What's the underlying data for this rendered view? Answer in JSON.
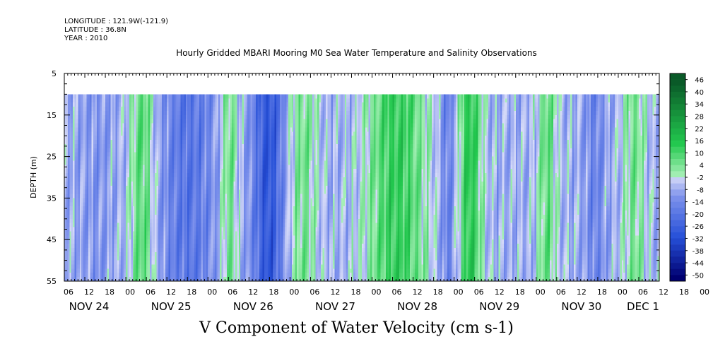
{
  "header": {
    "longitude": "LONGITUDE : 121.9W(-121.9)",
    "latitude": "LATITUDE : 36.8N",
    "year": "YEAR : 2010"
  },
  "title": "Hourly Gridded MBARI Mooring M0 Sea Water Temperature and Salinity Observations",
  "chart_data": {
    "type": "heatmap",
    "title": "Hourly Gridded MBARI Mooring M0 Sea Water Temperature and Salinity Observations",
    "xlabel": "V Component of Water Velocity (cm s-1)",
    "ylabel": "DEPTH (m)",
    "y_range": [
      5,
      55
    ],
    "y_inverted": true,
    "y_ticks": [
      "5",
      "15",
      "25",
      "35",
      "45",
      "55"
    ],
    "x_range_hours": [
      0,
      174
    ],
    "x_tick_labels": [
      "06",
      "12",
      "18",
      "00",
      "06",
      "12",
      "18",
      "00",
      "06",
      "12",
      "18",
      "00",
      "06",
      "12",
      "18",
      "00",
      "06",
      "12",
      "18",
      "00",
      "06",
      "12",
      "18",
      "00",
      "06",
      "12",
      "18",
      "00",
      "06",
      "12",
      "18",
      "00",
      "06"
    ],
    "day_labels": [
      "NOV 24",
      "NOV 25",
      "NOV 26",
      "NOV 27",
      "NOV 28",
      "NOV 29",
      "NOV 30",
      "DEC 1"
    ],
    "data_extent": {
      "depth_top": 10,
      "depth_bottom": 55,
      "start": "NOV 24 12:00",
      "end": "DEC 1 06:00"
    },
    "colorbar": {
      "labels": [
        "46",
        "40",
        "34",
        "28",
        "22",
        "16",
        "10",
        "4",
        "-2",
        "-8",
        "-14",
        "-20",
        "-26",
        "-32",
        "-38",
        "-44",
        "-50"
      ],
      "min": -50,
      "max": 46,
      "step": 6,
      "positive_colors": [
        "#0a5a28",
        "#22c84e",
        "#a8f0b8"
      ],
      "negative_colors": [
        "#d8dcf8",
        "#7e92ec",
        "#2650d8",
        "#000070"
      ]
    },
    "dominant_pattern": [
      {
        "time": "NOV 24 12-18",
        "sign": "negative",
        "value": -10
      },
      {
        "time": "NOV 25 03-06",
        "sign": "positive",
        "value": 10
      },
      {
        "time": "NOV 25 12-24",
        "sign": "negative",
        "value": -18
      },
      {
        "time": "NOV 26 06",
        "sign": "positive",
        "value": 8
      },
      {
        "time": "NOV 26 15-20",
        "sign": "negative",
        "value": -28
      },
      {
        "time": "NOV 27 01-06",
        "sign": "positive",
        "value": 6
      },
      {
        "time": "NOV 28 00-14",
        "sign": "positive",
        "value": 14
      },
      {
        "time": "NOV 28 22",
        "sign": "negative",
        "value": -16
      },
      {
        "time": "NOV 29 03-06",
        "sign": "positive",
        "value": 16
      },
      {
        "time": "NOV 30 02-04",
        "sign": "positive",
        "value": 8
      },
      {
        "time": "NOV 30 16-18",
        "sign": "negative",
        "value": -14
      },
      {
        "time": "DEC 1 03-06",
        "sign": "positive",
        "value": 6
      }
    ]
  }
}
